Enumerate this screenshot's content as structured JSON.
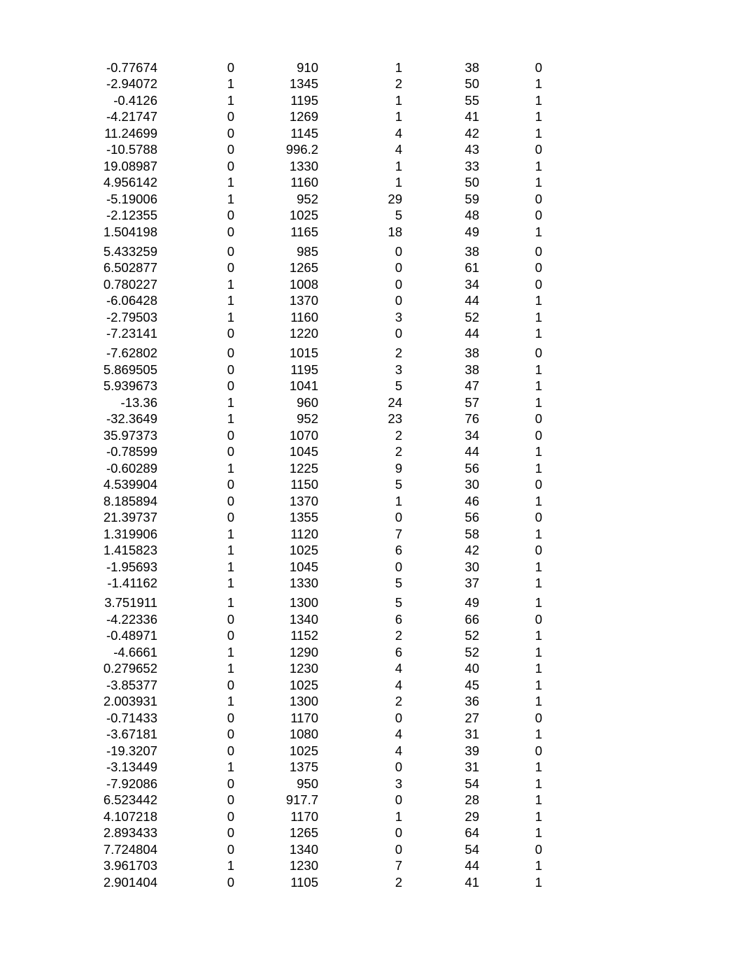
{
  "table": {
    "columns": 6,
    "col_align": [
      "right",
      "right",
      "right",
      "right",
      "right",
      "right"
    ],
    "font_family": "Arial",
    "font_size_pt": 14,
    "text_color": "#000000",
    "background_color": "#ffffff",
    "groups": [
      [
        [
          "-0.77674",
          "0",
          "910",
          "1",
          "38",
          "0"
        ],
        [
          "-2.94072",
          "1",
          "1345",
          "2",
          "50",
          "1"
        ],
        [
          "-0.4126",
          "1",
          "1195",
          "1",
          "55",
          "1"
        ],
        [
          "-4.21747",
          "0",
          "1269",
          "1",
          "41",
          "1"
        ],
        [
          "11.24699",
          "0",
          "1145",
          "4",
          "42",
          "1"
        ],
        [
          "-10.5788",
          "0",
          "996.2",
          "4",
          "43",
          "0"
        ],
        [
          "19.08987",
          "0",
          "1330",
          "1",
          "33",
          "1"
        ],
        [
          "4.956142",
          "1",
          "1160",
          "1",
          "50",
          "1"
        ],
        [
          "-5.19006",
          "1",
          "952",
          "29",
          "59",
          "0"
        ],
        [
          "-2.12355",
          "0",
          "1025",
          "5",
          "48",
          "0"
        ],
        [
          "1.504198",
          "0",
          "1165",
          "18",
          "49",
          "1"
        ]
      ],
      [
        [
          "5.433259",
          "0",
          "985",
          "0",
          "38",
          "0"
        ],
        [
          "6.502877",
          "0",
          "1265",
          "0",
          "61",
          "0"
        ],
        [
          "0.780227",
          "1",
          "1008",
          "0",
          "34",
          "0"
        ],
        [
          "-6.06428",
          "1",
          "1370",
          "0",
          "44",
          "1"
        ],
        [
          "-2.79503",
          "1",
          "1160",
          "3",
          "52",
          "1"
        ],
        [
          "-7.23141",
          "0",
          "1220",
          "0",
          "44",
          "1"
        ]
      ],
      [
        [
          "-7.62802",
          "0",
          "1015",
          "2",
          "38",
          "0"
        ],
        [
          "5.869505",
          "0",
          "1195",
          "3",
          "38",
          "1"
        ],
        [
          "5.939673",
          "0",
          "1041",
          "5",
          "47",
          "1"
        ],
        [
          "-13.36",
          "1",
          "960",
          "24",
          "57",
          "1"
        ],
        [
          "-32.3649",
          "1",
          "952",
          "23",
          "76",
          "0"
        ],
        [
          "35.97373",
          "0",
          "1070",
          "2",
          "34",
          "0"
        ],
        [
          "-0.78599",
          "0",
          "1045",
          "2",
          "44",
          "1"
        ],
        [
          "-0.60289",
          "1",
          "1225",
          "9",
          "56",
          "1"
        ],
        [
          "4.539904",
          "0",
          "1150",
          "5",
          "30",
          "0"
        ],
        [
          "8.185894",
          "0",
          "1370",
          "1",
          "46",
          "1"
        ],
        [
          "21.39737",
          "0",
          "1355",
          "0",
          "56",
          "0"
        ],
        [
          "1.319906",
          "1",
          "1120",
          "7",
          "58",
          "1"
        ],
        [
          "1.415823",
          "1",
          "1025",
          "6",
          "42",
          "0"
        ],
        [
          "-1.95693",
          "1",
          "1045",
          "0",
          "30",
          "1"
        ],
        [
          "-1.41162",
          "1",
          "1330",
          "5",
          "37",
          "1"
        ]
      ],
      [
        [
          "3.751911",
          "1",
          "1300",
          "5",
          "49",
          "1"
        ],
        [
          "-4.22336",
          "0",
          "1340",
          "6",
          "66",
          "0"
        ],
        [
          "-0.48971",
          "0",
          "1152",
          "2",
          "52",
          "1"
        ],
        [
          "-4.6661",
          "1",
          "1290",
          "6",
          "52",
          "1"
        ],
        [
          "0.279652",
          "1",
          "1230",
          "4",
          "40",
          "1"
        ],
        [
          "-3.85377",
          "0",
          "1025",
          "4",
          "45",
          "1"
        ],
        [
          "2.003931",
          "1",
          "1300",
          "2",
          "36",
          "1"
        ],
        [
          "-0.71433",
          "0",
          "1170",
          "0",
          "27",
          "0"
        ],
        [
          "-3.67181",
          "0",
          "1080",
          "4",
          "31",
          "1"
        ],
        [
          "-19.3207",
          "0",
          "1025",
          "4",
          "39",
          "0"
        ],
        [
          "-3.13449",
          "1",
          "1375",
          "0",
          "31",
          "1"
        ],
        [
          "-7.92086",
          "0",
          "950",
          "3",
          "54",
          "1"
        ],
        [
          "6.523442",
          "0",
          "917.7",
          "0",
          "28",
          "1"
        ],
        [
          "4.107218",
          "0",
          "1170",
          "1",
          "29",
          "1"
        ],
        [
          "2.893433",
          "0",
          "1265",
          "0",
          "64",
          "1"
        ],
        [
          "7.724804",
          "0",
          "1340",
          "0",
          "54",
          "0"
        ],
        [
          "3.961703",
          "1",
          "1230",
          "7",
          "44",
          "1"
        ],
        [
          "2.901404",
          "0",
          "1105",
          "2",
          "41",
          "1"
        ]
      ]
    ]
  }
}
